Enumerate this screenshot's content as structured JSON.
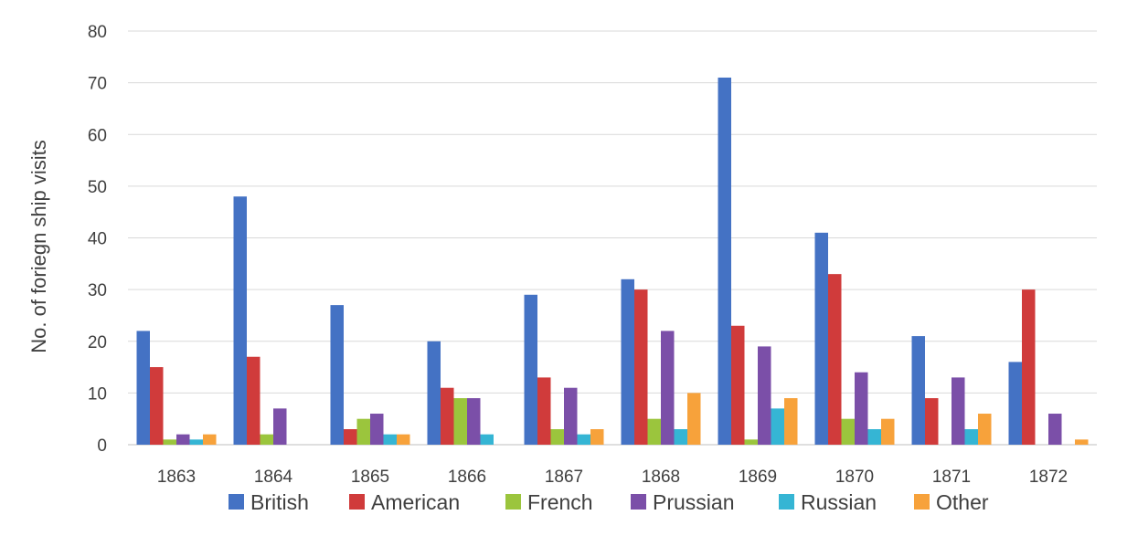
{
  "chart_data": {
    "type": "bar",
    "title": "",
    "xlabel": "",
    "ylabel": "No. of foriegn ship visits",
    "ylim": [
      0,
      80
    ],
    "yticks": [
      0,
      10,
      20,
      30,
      40,
      50,
      60,
      70,
      80
    ],
    "grid": true,
    "legend_position": "bottom",
    "categories": [
      "1863",
      "1864",
      "1865",
      "1866",
      "1867",
      "1868",
      "1869",
      "1870",
      "1871",
      "1872"
    ],
    "series": [
      {
        "name": "British",
        "color": "#4472C4",
        "values": [
          22,
          48,
          27,
          20,
          29,
          32,
          71,
          41,
          21,
          16
        ]
      },
      {
        "name": "American",
        "color": "#D03B3B",
        "values": [
          15,
          17,
          3,
          11,
          13,
          30,
          23,
          33,
          9,
          30
        ]
      },
      {
        "name": "French",
        "color": "#9BC53D",
        "values": [
          1,
          2,
          5,
          9,
          3,
          5,
          1,
          5,
          0,
          0
        ]
      },
      {
        "name": "Prussian",
        "color": "#7B4FA8",
        "values": [
          2,
          7,
          6,
          9,
          11,
          22,
          19,
          14,
          13,
          6
        ]
      },
      {
        "name": "Russian",
        "color": "#35B5D4",
        "values": [
          1,
          0,
          2,
          2,
          2,
          3,
          7,
          3,
          3,
          0
        ]
      },
      {
        "name": "Other",
        "color": "#F7A23B",
        "values": [
          2,
          0,
          2,
          0,
          3,
          10,
          9,
          5,
          6,
          1
        ]
      }
    ]
  }
}
